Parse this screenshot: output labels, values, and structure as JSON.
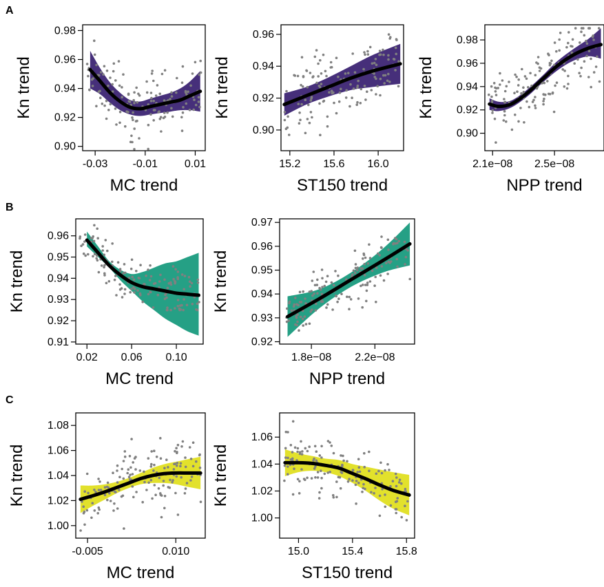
{
  "panel_letters": [
    "A",
    "B",
    "C"
  ],
  "colors": {
    "purple": "#462F7A",
    "teal": "#25A085",
    "yellow": "#E2E12C",
    "line": "#000000",
    "points": "#808080"
  },
  "chart_data": [
    {
      "id": "A1",
      "type": "line",
      "panel": "A",
      "xlabel": "MC trend",
      "ylabel": "Kn trend",
      "xlim": [
        -0.035,
        0.014
      ],
      "ylim": [
        0.897,
        0.984
      ],
      "xticks": [
        -0.03,
        -0.01,
        0.01
      ],
      "xtick_labels": [
        "-0.03",
        "-0.01",
        "0.01"
      ],
      "yticks": [
        0.9,
        0.92,
        0.94,
        0.96,
        0.98
      ],
      "ytick_labels": [
        "0.90",
        "0.92",
        "0.94",
        "0.96",
        "0.98"
      ],
      "band_color": "purple",
      "points_range": [
        0.898,
        0.982
      ],
      "series": [
        {
          "x": [
            -0.032,
            -0.028,
            -0.024,
            -0.02,
            -0.016,
            -0.012,
            -0.008,
            -0.004,
            0.0,
            0.004,
            0.008,
            0.012
          ],
          "y": [
            0.953,
            0.945,
            0.937,
            0.931,
            0.927,
            0.926,
            0.9275,
            0.929,
            0.9305,
            0.932,
            0.935,
            0.938
          ],
          "lower": [
            0.94,
            0.936,
            0.93,
            0.925,
            0.922,
            0.921,
            0.922,
            0.923,
            0.924,
            0.925,
            0.925,
            0.924
          ],
          "upper": [
            0.966,
            0.954,
            0.944,
            0.937,
            0.932,
            0.931,
            0.933,
            0.935,
            0.937,
            0.94,
            0.945,
            0.952
          ]
        }
      ]
    },
    {
      "id": "A2",
      "type": "line",
      "panel": "A",
      "xlabel": "ST150 trend",
      "ylabel": "Kn trend",
      "xlim": [
        15.12,
        16.23
      ],
      "ylim": [
        0.887,
        0.966
      ],
      "xticks": [
        15.2,
        15.6,
        16.0
      ],
      "xtick_labels": [
        "15.2",
        "15.6",
        "16.0"
      ],
      "yticks": [
        0.9,
        0.92,
        0.94,
        0.96
      ],
      "ytick_labels": [
        "0.90",
        "0.92",
        "0.94",
        "0.96"
      ],
      "band_color": "purple",
      "points_range": [
        0.889,
        0.963
      ],
      "series": [
        {
          "x": [
            15.15,
            15.35,
            15.55,
            15.75,
            15.95,
            16.2
          ],
          "y": [
            0.916,
            0.9215,
            0.927,
            0.9325,
            0.937,
            0.9415
          ],
          "lower": [
            0.909,
            0.916,
            0.921,
            0.925,
            0.927,
            0.929
          ],
          "upper": [
            0.923,
            0.927,
            0.933,
            0.94,
            0.947,
            0.954
          ]
        }
      ]
    },
    {
      "id": "A3",
      "type": "line",
      "panel": "A",
      "xlabel": "NPP trend",
      "ylabel": "Kn trend",
      "xlim": [
        2.05e-08,
        2.82e-08
      ],
      "ylim": [
        0.885,
        0.993
      ],
      "xticks": [
        2.1e-08,
        2.5e-08
      ],
      "xtick_labels": [
        "2.1e−08",
        "2.5e−08"
      ],
      "yticks": [
        0.9,
        0.92,
        0.94,
        0.96,
        0.98
      ],
      "ytick_labels": [
        "0.90",
        "0.92",
        "0.94",
        "0.96",
        "0.98"
      ],
      "band_color": "purple",
      "points_range": [
        0.886,
        0.99
      ],
      "series": [
        {
          "x": [
            2.08e-08,
            2.14e-08,
            2.22e-08,
            2.32e-08,
            2.42e-08,
            2.52e-08,
            2.62e-08,
            2.72e-08,
            2.8e-08
          ],
          "y": [
            0.925,
            0.923,
            0.925,
            0.934,
            0.946,
            0.958,
            0.967,
            0.973,
            0.976
          ],
          "lower": [
            0.92,
            0.919,
            0.922,
            0.931,
            0.943,
            0.954,
            0.962,
            0.966,
            0.964
          ],
          "upper": [
            0.93,
            0.927,
            0.928,
            0.937,
            0.949,
            0.962,
            0.972,
            0.981,
            0.99
          ]
        }
      ]
    },
    {
      "id": "B1",
      "type": "line",
      "panel": "B",
      "xlabel": "MC trend",
      "ylabel": "Kn trend",
      "xlim": [
        0.01,
        0.124
      ],
      "ylim": [
        0.909,
        0.968
      ],
      "xticks": [
        0.02,
        0.06,
        0.1
      ],
      "xtick_labels": [
        "0.02",
        "0.06",
        "0.10"
      ],
      "yticks": [
        0.91,
        0.92,
        0.93,
        0.94,
        0.95,
        0.96
      ],
      "ytick_labels": [
        "0.91",
        "0.92",
        "0.93",
        "0.94",
        "0.95",
        "0.96"
      ],
      "band_color": "teal",
      "points_range": [
        0.925,
        0.965
      ],
      "series": [
        {
          "x": [
            0.02,
            0.03,
            0.04,
            0.05,
            0.06,
            0.07,
            0.08,
            0.09,
            0.1,
            0.11,
            0.12
          ],
          "y": [
            0.958,
            0.952,
            0.946,
            0.9415,
            0.938,
            0.936,
            0.935,
            0.934,
            0.933,
            0.9325,
            0.932
          ],
          "lower": [
            0.955,
            0.95,
            0.945,
            0.939,
            0.934,
            0.929,
            0.925,
            0.921,
            0.918,
            0.915,
            0.913
          ],
          "upper": [
            0.962,
            0.955,
            0.948,
            0.944,
            0.942,
            0.943,
            0.945,
            0.947,
            0.948,
            0.95,
            0.952
          ]
        }
      ]
    },
    {
      "id": "B2",
      "type": "line",
      "panel": "B",
      "xlabel": "NPP trend",
      "ylabel": "Kn trend",
      "xlim": [
        1.6e-08,
        2.45e-08
      ],
      "ylim": [
        0.919,
        0.9715
      ],
      "xticks": [
        1.8e-08,
        2.2e-08
      ],
      "xtick_labels": [
        "1.8e−08",
        "2.2e−08"
      ],
      "yticks": [
        0.92,
        0.93,
        0.94,
        0.95,
        0.96,
        0.97
      ],
      "ytick_labels": [
        "0.92",
        "0.93",
        "0.94",
        "0.95",
        "0.96",
        "0.97"
      ],
      "band_color": "teal",
      "points_range": [
        0.922,
        0.964
      ],
      "series": [
        {
          "x": [
            1.65e-08,
            1.85e-08,
            2.05e-08,
            2.25e-08,
            2.42e-08
          ],
          "y": [
            0.9305,
            0.938,
            0.946,
            0.954,
            0.961
          ],
          "lower": [
            0.922,
            0.934,
            0.943,
            0.949,
            0.952
          ],
          "upper": [
            0.939,
            0.942,
            0.949,
            0.959,
            0.97
          ]
        }
      ]
    },
    {
      "id": "C1",
      "type": "line",
      "panel": "C",
      "xlabel": "MC trend",
      "ylabel": "Kn trend",
      "xlim": [
        -0.007,
        0.015
      ],
      "ylim": [
        0.99,
        1.09
      ],
      "xticks": [
        -0.005,
        0.01
      ],
      "xtick_labels": [
        "-0.005",
        "0.010"
      ],
      "yticks": [
        1.0,
        1.02,
        1.04,
        1.06,
        1.08
      ],
      "ytick_labels": [
        "1.00",
        "1.02",
        "1.04",
        "1.06",
        "1.08"
      ],
      "band_color": "yellow",
      "points_range": [
        0.992,
        1.085
      ],
      "series": [
        {
          "x": [
            -0.0062,
            -0.004,
            -0.002,
            0.0,
            0.002,
            0.004,
            0.006,
            0.008,
            0.01,
            0.012,
            0.0142
          ],
          "y": [
            1.021,
            1.024,
            1.027,
            1.0305,
            1.034,
            1.0375,
            1.04,
            1.0415,
            1.042,
            1.042,
            1.042
          ],
          "lower": [
            1.01,
            1.016,
            1.021,
            1.026,
            1.03,
            1.033,
            1.034,
            1.034,
            1.033,
            1.031,
            1.029
          ],
          "upper": [
            1.032,
            1.032,
            1.033,
            1.035,
            1.038,
            1.042,
            1.046,
            1.049,
            1.051,
            1.053,
            1.055
          ]
        }
      ]
    },
    {
      "id": "C2",
      "type": "line",
      "panel": "C",
      "xlabel": "ST150 trend",
      "ylabel": "Kn trend",
      "xlim": [
        14.86,
        15.86
      ],
      "ylim": [
        0.985,
        1.078
      ],
      "xticks": [
        15.0,
        15.4,
        15.8
      ],
      "xtick_labels": [
        "15.0",
        "15.4",
        "15.8"
      ],
      "yticks": [
        1.0,
        1.02,
        1.04,
        1.06
      ],
      "ytick_labels": [
        "1.00",
        "1.02",
        "1.04",
        "1.06"
      ],
      "band_color": "yellow",
      "points_range": [
        0.988,
        1.075
      ],
      "series": [
        {
          "x": [
            14.9,
            15.0,
            15.1,
            15.2,
            15.3,
            15.4,
            15.5,
            15.6,
            15.7,
            15.82
          ],
          "y": [
            1.041,
            1.041,
            1.0405,
            1.039,
            1.037,
            1.033,
            1.029,
            1.0245,
            1.0205,
            1.017
          ],
          "lower": [
            1.031,
            1.034,
            1.035,
            1.034,
            1.031,
            1.026,
            1.02,
            1.013,
            1.007,
            1.002
          ],
          "upper": [
            1.051,
            1.048,
            1.046,
            1.044,
            1.043,
            1.04,
            1.038,
            1.036,
            1.034,
            1.032
          ]
        }
      ]
    }
  ]
}
